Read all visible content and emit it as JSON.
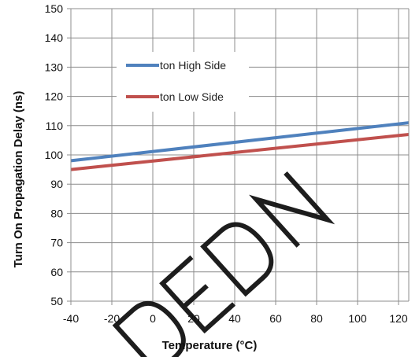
{
  "chart_data": {
    "type": "line",
    "title": "",
    "xlabel": "Temperature (°C)",
    "ylabel": "Turn On Propagation Delay (ns)",
    "xlim": [
      -40,
      125
    ],
    "ylim": [
      50,
      150
    ],
    "xticks": [
      -40,
      -20,
      0,
      20,
      40,
      60,
      80,
      100,
      120
    ],
    "yticks": [
      50,
      60,
      70,
      80,
      90,
      100,
      110,
      120,
      130,
      140,
      150
    ],
    "grid": true,
    "legend_position": "upper-left",
    "series": [
      {
        "name": "ton High Side",
        "color": "#4F81BD",
        "x": [
          -40,
          125
        ],
        "y": [
          98,
          111
        ]
      },
      {
        "name": "ton Low Side",
        "color": "#C0504D",
        "x": [
          -40,
          125
        ],
        "y": [
          95,
          107
        ]
      }
    ]
  },
  "watermark": {
    "text": "DECODED"
  }
}
